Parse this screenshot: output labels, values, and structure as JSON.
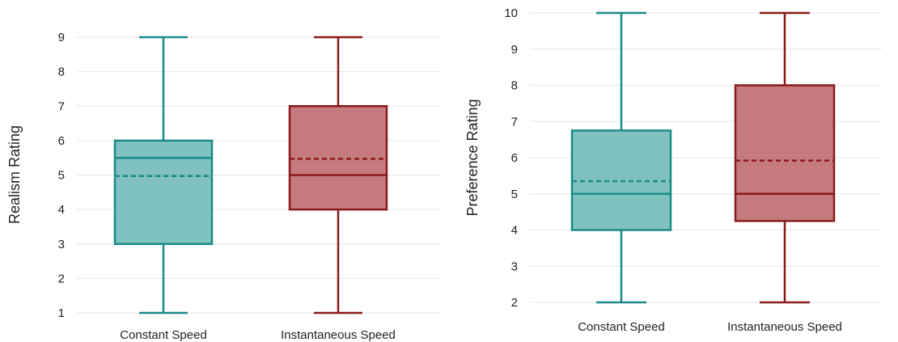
{
  "colors": {
    "constant": "#1a8c88",
    "constant_fill": "#7fc2bf",
    "instant": "#8b1a1a",
    "instant_fill": "#c47b7e"
  },
  "chart_data": [
    {
      "type": "box",
      "ylabel": "Realism Rating",
      "ylim": [
        1,
        9
      ],
      "yticks": [
        1,
        2,
        3,
        4,
        5,
        6,
        7,
        8,
        9
      ],
      "grid": true,
      "categories": [
        "Constant Speed",
        "Instantaneous Speed"
      ],
      "boxes": [
        {
          "category": "Constant Speed",
          "min": 1,
          "q1": 3,
          "median": 5.5,
          "mean": 4.97,
          "q3": 6,
          "max": 9
        },
        {
          "category": "Instantaneous Speed",
          "min": 1,
          "q1": 4,
          "median": 5,
          "mean": 5.47,
          "q3": 7,
          "max": 9
        }
      ]
    },
    {
      "type": "box",
      "ylabel": "Preference Rating",
      "ylim": [
        2,
        10
      ],
      "yticks": [
        2,
        3,
        4,
        5,
        6,
        7,
        8,
        9,
        10
      ],
      "grid": true,
      "categories": [
        "Constant Speed",
        "Instantaneous Speed"
      ],
      "boxes": [
        {
          "category": "Constant Speed",
          "min": 2,
          "q1": 4,
          "median": 5,
          "mean": 5.35,
          "q3": 6.75,
          "max": 10
        },
        {
          "category": "Instantaneous Speed",
          "min": 2,
          "q1": 4.25,
          "median": 5,
          "mean": 5.92,
          "q3": 8,
          "max": 10
        }
      ]
    }
  ]
}
